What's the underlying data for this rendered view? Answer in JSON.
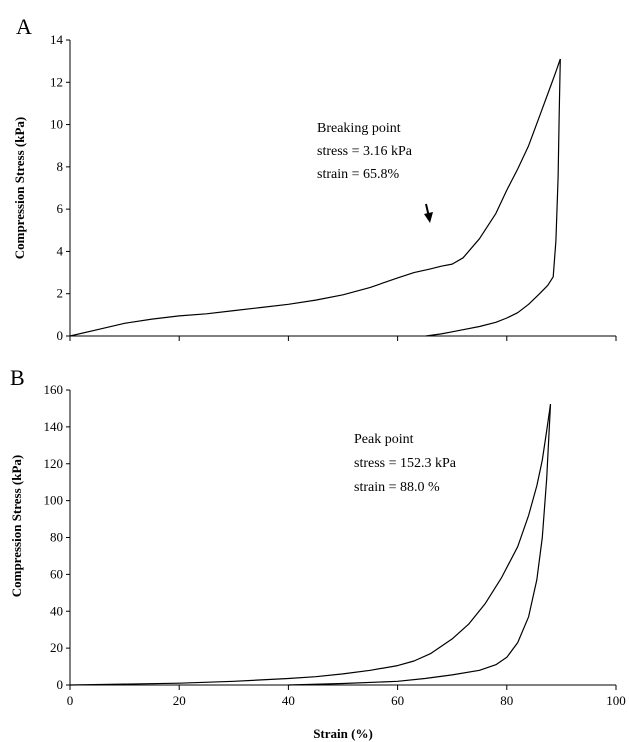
{
  "chart_data": [
    {
      "type": "line",
      "panel_label": "A",
      "ylabel": "Compression Stress (kPa)",
      "xlabel": "",
      "xlim": [
        0,
        100
      ],
      "ylim": [
        0,
        14
      ],
      "x_ticks": [
        0,
        20,
        40,
        60,
        80,
        100
      ],
      "y_ticks": [
        "0",
        "2",
        "4",
        "6",
        "8",
        "10",
        "12",
        "14"
      ],
      "show_x_tick_labels": false,
      "grid": false,
      "annotation": [
        "Breaking point",
        "stress = 3.16 kPa",
        "strain = 65.8%"
      ],
      "arrow_at": {
        "x": 65.8,
        "y": 3.16
      },
      "series": [
        {
          "x": [
            0,
            5,
            10,
            15,
            20,
            25,
            30,
            35,
            40,
            45,
            50,
            55,
            60,
            63,
            65.8,
            68,
            70,
            72,
            75,
            78,
            80,
            82,
            84,
            86,
            88,
            89,
            89.8
          ],
          "values": [
            0,
            0.3,
            0.6,
            0.8,
            0.95,
            1.05,
            1.2,
            1.35,
            1.5,
            1.7,
            1.95,
            2.3,
            2.75,
            3.0,
            3.16,
            3.3,
            3.4,
            3.7,
            4.6,
            5.8,
            6.9,
            7.9,
            9.0,
            10.4,
            11.8,
            12.5,
            13.1
          ]
        },
        {
          "x": [
            65.2,
            68,
            70,
            72,
            75,
            78,
            80,
            82,
            84,
            86,
            87.5,
            88.5,
            89,
            89.4,
            89.6,
            89.8
          ],
          "values": [
            0,
            0.1,
            0.2,
            0.3,
            0.45,
            0.65,
            0.85,
            1.1,
            1.5,
            2.0,
            2.4,
            2.8,
            4.5,
            7.5,
            10.5,
            13.1
          ]
        }
      ]
    },
    {
      "type": "line",
      "panel_label": "B",
      "ylabel": "Compression Stress (kPa)",
      "xlabel": "Strain (%)",
      "xlim": [
        0,
        100
      ],
      "ylim": [
        0,
        160
      ],
      "x_ticks": [
        "0",
        "20",
        "40",
        "60",
        "80",
        "100"
      ],
      "y_ticks": [
        "0",
        "20",
        "40",
        "60",
        "80",
        "100",
        "120",
        "140",
        "160"
      ],
      "show_x_tick_labels": true,
      "grid": false,
      "annotation": [
        "Peak point",
        "stress = 152.3 kPa",
        "strain = 88.0 %"
      ],
      "series": [
        {
          "x": [
            0,
            10,
            20,
            30,
            40,
            45,
            50,
            55,
            60,
            63,
            66,
            70,
            73,
            76,
            79,
            82,
            84,
            85.5,
            86.5,
            87.3,
            88.0
          ],
          "values": [
            0,
            0.5,
            1,
            2,
            3.5,
            4.5,
            6,
            8,
            10.5,
            13,
            17,
            25,
            33,
            44,
            58,
            75,
            92,
            108,
            122,
            138,
            152.3
          ]
        },
        {
          "x": [
            40,
            50,
            60,
            65,
            70,
            75,
            78,
            80,
            82,
            84,
            85.5,
            86.5,
            87.3,
            88.0
          ],
          "values": [
            0,
            0.8,
            2,
            3.5,
            5.5,
            8,
            11,
            15,
            23,
            37,
            57,
            80,
            112,
            152.3
          ]
        }
      ]
    }
  ]
}
